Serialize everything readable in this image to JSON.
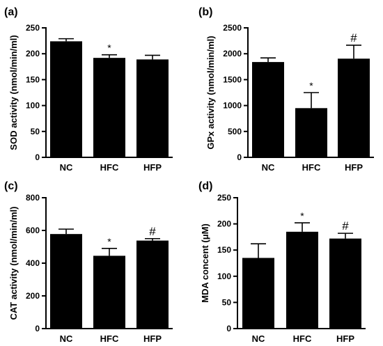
{
  "chart_data": [
    {
      "panel": "(a)",
      "type": "bar",
      "categories": [
        "NC",
        "HFC",
        "HFP"
      ],
      "values": [
        224,
        192,
        189
      ],
      "errors": [
        5,
        6,
        8
      ],
      "significance": [
        "",
        "*",
        ""
      ],
      "ylabel": "SOD activity (nmol/min/ml)",
      "ylim": [
        0,
        250
      ],
      "yticks": [
        0,
        50,
        100,
        150,
        200,
        250
      ]
    },
    {
      "panel": "(b)",
      "type": "bar",
      "categories": [
        "NC",
        "HFC",
        "HFP"
      ],
      "values": [
        1840,
        950,
        1905
      ],
      "errors": [
        80,
        300,
        260
      ],
      "significance": [
        "",
        "*",
        "#"
      ],
      "ylabel": "GPx activity (nmol/min/ml)",
      "ylim": [
        0,
        2500
      ],
      "yticks": [
        0,
        500,
        1000,
        1500,
        2000,
        2500
      ]
    },
    {
      "panel": "(c)",
      "type": "bar",
      "categories": [
        "NC",
        "HFC",
        "HFP"
      ],
      "values": [
        578,
        445,
        538
      ],
      "errors": [
        30,
        45,
        12
      ],
      "significance": [
        "",
        "*",
        "#"
      ],
      "ylabel": "CAT activity (nmol/min/ml)",
      "ylim": [
        0,
        800
      ],
      "yticks": [
        0,
        200,
        400,
        600,
        800
      ]
    },
    {
      "panel": "(d)",
      "type": "bar",
      "categories": [
        "NC",
        "HFC",
        "HFP"
      ],
      "values": [
        135,
        185,
        172
      ],
      "errors": [
        27,
        17,
        10
      ],
      "significance": [
        "",
        "*",
        "#"
      ],
      "ylabel": "MDA concent (μM)",
      "ylim": [
        0,
        250
      ],
      "yticks": [
        0,
        50,
        100,
        150,
        200,
        250
      ]
    }
  ]
}
